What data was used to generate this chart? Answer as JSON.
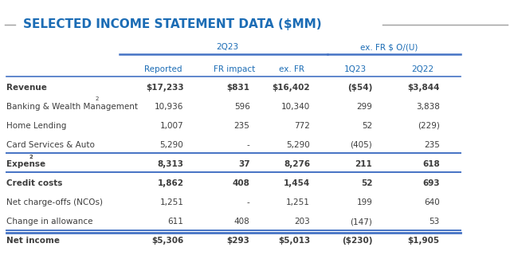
{
  "title": "SELECTED INCOME STATEMENT DATA ($MM)",
  "title_color": "#1B6CB5",
  "background_color": "#FFFFFF",
  "header_group1": "2Q23",
  "header_group2": "ex. FR $ O/(U)",
  "col_headers": [
    "Reported",
    "FR impact",
    "ex. FR",
    "1Q23",
    "2Q22"
  ],
  "col_header_color": "#1B6CB5",
  "rows": [
    {
      "label": "Revenue",
      "bold": true,
      "superscript": "",
      "values": [
        "$17,233",
        "$831",
        "$16,402",
        "($54)",
        "$3,844"
      ],
      "bold_values": true,
      "border_bottom": false
    },
    {
      "label": "Banking & Wealth Management",
      "bold": false,
      "superscript": "2",
      "values": [
        "10,936",
        "596",
        "10,340",
        "299",
        "3,838"
      ],
      "bold_values": false,
      "border_bottom": false
    },
    {
      "label": "Home Lending",
      "bold": false,
      "superscript": "",
      "values": [
        "1,007",
        "235",
        "772",
        "52",
        "(229)"
      ],
      "bold_values": false,
      "border_bottom": false
    },
    {
      "label": "Card Services & Auto",
      "bold": false,
      "superscript": "",
      "values": [
        "5,290",
        "-",
        "5,290",
        "(405)",
        "235"
      ],
      "bold_values": false,
      "border_bottom": true
    },
    {
      "label": "Expense",
      "bold": true,
      "superscript": "2",
      "values": [
        "8,313",
        "37",
        "8,276",
        "211",
        "618"
      ],
      "bold_values": true,
      "border_bottom": true
    },
    {
      "label": "Credit costs",
      "bold": true,
      "superscript": "",
      "values": [
        "1,862",
        "408",
        "1,454",
        "52",
        "693"
      ],
      "bold_values": true,
      "border_bottom": false
    },
    {
      "label": "Net charge-offs (NCOs)",
      "bold": false,
      "superscript": "",
      "values": [
        "1,251",
        "-",
        "1,251",
        "199",
        "640"
      ],
      "bold_values": false,
      "border_bottom": false
    },
    {
      "label": "Change in allowance",
      "bold": false,
      "superscript": "",
      "values": [
        "611",
        "408",
        "203",
        "(147)",
        "53"
      ],
      "bold_values": false,
      "border_bottom": true
    },
    {
      "label": "Net income",
      "bold": true,
      "superscript": "",
      "values": [
        "$5,306",
        "$293",
        "$5,013",
        "($230)",
        "$1,905"
      ],
      "bold_values": true,
      "border_bottom": false
    }
  ],
  "text_color": "#3D3D3D",
  "blue_color": "#1B6CB5",
  "line_color": "#4472C4",
  "thick_line_color": "#4472C4",
  "fig_width": 6.4,
  "fig_height": 3.3,
  "dpi": 100
}
